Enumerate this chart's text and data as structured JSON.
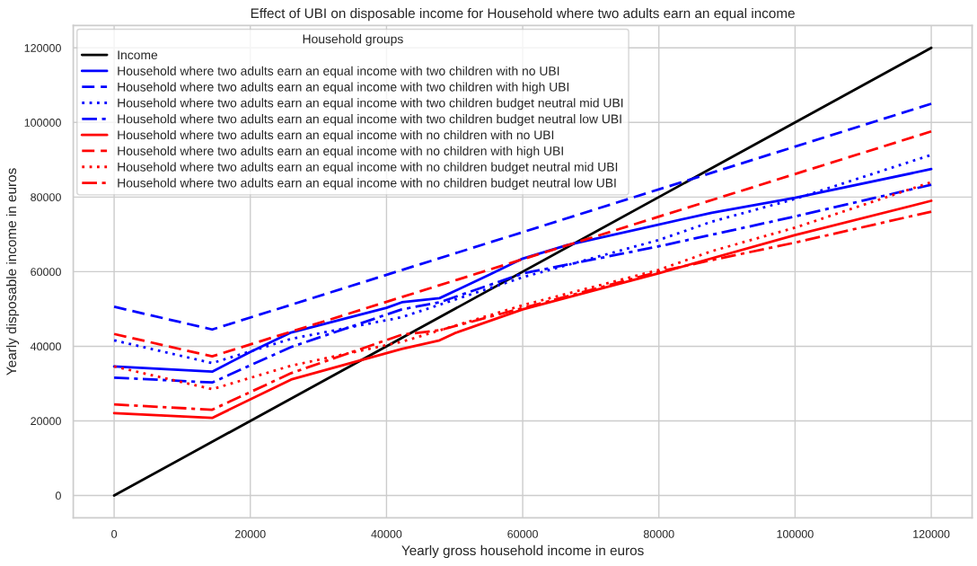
{
  "chart_data": {
    "type": "line",
    "title": "Effect of UBI on disposable income for Household where two adults earn an equal income",
    "xlabel": "Yearly gross household income in euros",
    "ylabel": "Yearly disposable income in euros",
    "legend_title": "Household groups",
    "legend": "top left",
    "grid": true,
    "xlim": [
      -6000,
      126000
    ],
    "ylim": [
      -6000,
      126000
    ],
    "xticks": [
      0,
      20000,
      40000,
      60000,
      80000,
      100000,
      120000
    ],
    "yticks": [
      0,
      20000,
      40000,
      60000,
      80000,
      100000,
      120000
    ],
    "series": [
      {
        "name": "Income",
        "color": "#000000",
        "line_style": "solid",
        "x": [
          0,
          120000
        ],
        "values": [
          0,
          120000
        ]
      },
      {
        "name": "Household where two adults earn an equal income with two children with no UBI",
        "color": "#0000ff",
        "line_style": "solid",
        "x": [
          0,
          14400,
          20000,
          26000,
          40000,
          42250,
          47800,
          55250,
          60000,
          66500,
          87750,
          100000,
          120000
        ],
        "values": [
          34600,
          33200,
          38500,
          43700,
          50300,
          51800,
          52900,
          59300,
          63500,
          67100,
          75800,
          79800,
          87500
        ]
      },
      {
        "name": "Household where two adults earn an equal income with two children with high UBI",
        "color": "#0000ff",
        "line_style": "dashed",
        "x": [
          0,
          14400,
          60000,
          120000
        ],
        "values": [
          50600,
          44500,
          70600,
          105000
        ]
      },
      {
        "name": "Household where two adults earn an equal income with two children budget neutral mid UBI",
        "color": "#0000ff",
        "line_style": "dotted",
        "x": [
          0,
          14400,
          26000,
          42250,
          60000,
          80000,
          87750,
          100000,
          120000
        ],
        "values": [
          41600,
          35500,
          42000,
          47800,
          58500,
          68500,
          73400,
          79500,
          91300
        ]
      },
      {
        "name": "Household where two adults earn an equal income with two children budget neutral low UBI",
        "color": "#0000ff",
        "line_style": "dashdot",
        "x": [
          0,
          14400,
          26000,
          42250,
          47800,
          60000,
          80000,
          87750,
          100000,
          120000
        ],
        "values": [
          31600,
          30300,
          39800,
          49900,
          51800,
          59500,
          66800,
          69900,
          74800,
          83300
        ]
      },
      {
        "name": "Household where two adults earn an equal income with no children with no UBI",
        "color": "#ff0000",
        "line_style": "solid",
        "x": [
          0,
          14400,
          26000,
          42250,
          47800,
          50000,
          60000,
          80000,
          100000,
          120000
        ],
        "values": [
          22100,
          20800,
          31100,
          39300,
          41600,
          43500,
          49900,
          59600,
          69800,
          79000
        ]
      },
      {
        "name": "Household where two adults earn an equal income with no children with high UBI",
        "color": "#ff0000",
        "line_style": "dashed",
        "x": [
          0,
          14400,
          120000
        ],
        "values": [
          43300,
          37300,
          97600
        ]
      },
      {
        "name": "Household where two adults earn an equal income with no children budget neutral mid UBI",
        "color": "#ff0000",
        "line_style": "dotted",
        "x": [
          0,
          14400,
          26000,
          42250,
          60000,
          80000,
          87750,
          100000,
          120000
        ],
        "values": [
          34600,
          28500,
          34800,
          41200,
          51000,
          60500,
          65500,
          71800,
          84000
        ]
      },
      {
        "name": "Household where two adults earn an equal income with no children budget neutral low UBI",
        "color": "#ff0000",
        "line_style": "dashdot",
        "x": [
          0,
          14400,
          26000,
          42250,
          47800,
          80000,
          87750,
          100000,
          120000
        ],
        "values": [
          24400,
          23000,
          32800,
          43100,
          44300,
          60000,
          63100,
          67800,
          76100
        ]
      }
    ]
  }
}
